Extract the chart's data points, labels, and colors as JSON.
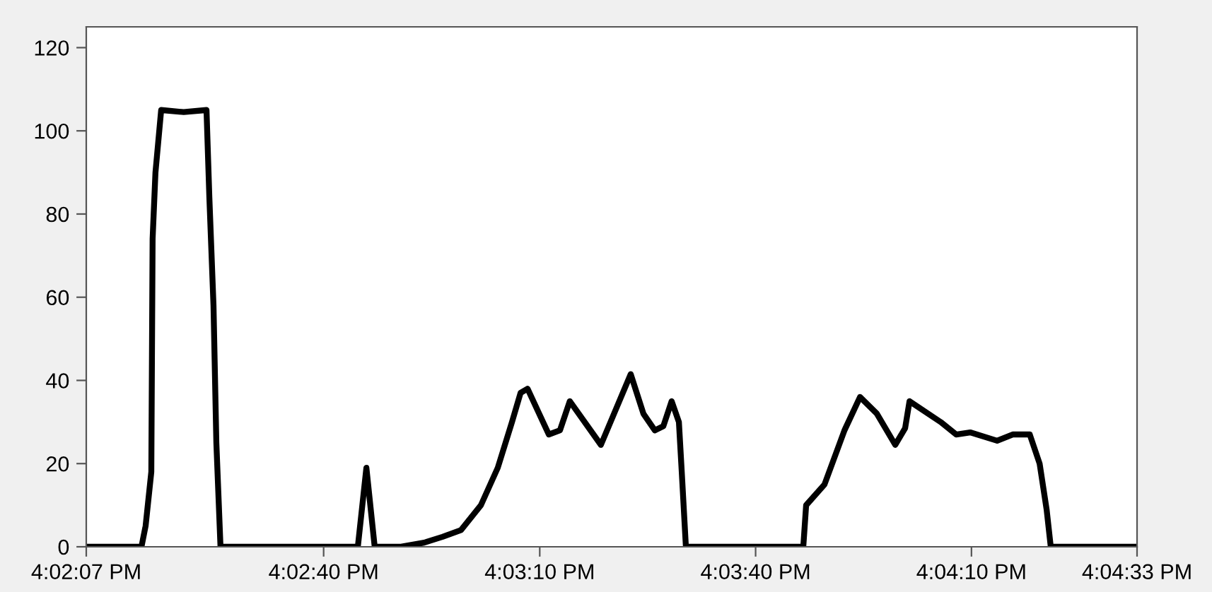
{
  "chart_data": {
    "type": "line",
    "x": [
      16.03528,
      16.03741,
      16.03757,
      16.03779,
      16.03784,
      16.03795,
      16.03817,
      16.03904,
      16.03992,
      16.04003,
      16.04019,
      16.0403,
      16.04046,
      16.04576,
      16.04609,
      16.04641,
      16.04739,
      16.04832,
      16.04903,
      16.04974,
      16.05051,
      16.05116,
      16.05171,
      16.05204,
      16.05231,
      16.05313,
      16.05356,
      16.05394,
      16.05514,
      16.05629,
      16.05678,
      16.05722,
      16.05755,
      16.05787,
      16.05815,
      16.05826,
      16.05842,
      16.06295,
      16.06306,
      16.06377,
      16.06454,
      16.06514,
      16.06579,
      16.0665,
      16.06688,
      16.06705,
      16.06825,
      16.06885,
      16.06939,
      16.07043,
      16.07103,
      16.07169,
      16.07207,
      16.07234,
      16.0725,
      16.07583
    ],
    "series": [
      {
        "color": "#000000",
        "values": [
          0,
          0,
          5,
          18,
          74,
          90,
          105,
          104.5,
          105,
          84,
          58,
          25,
          0,
          0,
          19,
          0,
          0,
          1,
          2.4,
          4,
          10,
          19,
          30,
          37,
          38,
          27,
          28,
          35,
          24.5,
          41.5,
          32,
          28,
          29,
          35,
          30,
          18,
          0,
          0,
          10,
          15,
          28,
          36,
          32,
          24.5,
          28.5,
          35,
          30,
          27,
          27.5,
          25.5,
          27,
          27,
          20,
          9,
          0,
          0
        ]
      }
    ],
    "xlim": [
      16.03528,
      16.07583
    ],
    "xticks": [
      {
        "value": 16.03528,
        "label": "4:02:07 PM"
      },
      {
        "value": 16.04444,
        "label": "4:02:40 PM"
      },
      {
        "value": 16.05278,
        "label": "4:03:10 PM"
      },
      {
        "value": 16.06111,
        "label": "4:03:40 PM"
      },
      {
        "value": 16.06944,
        "label": "4:04:10 PM"
      },
      {
        "value": 16.07583,
        "label": "4:04:33 PM"
      }
    ],
    "ylim": [
      0,
      125
    ],
    "yticks": [
      0,
      20,
      40,
      60,
      80,
      100,
      120
    ],
    "grid": false,
    "legend": false,
    "marker": "none",
    "line_style": "solid"
  }
}
